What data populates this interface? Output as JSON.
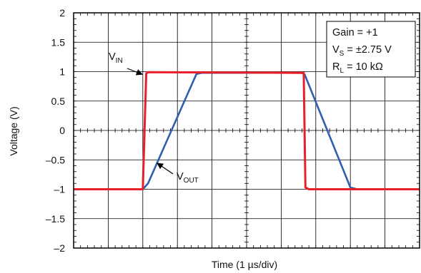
{
  "chart_data": {
    "type": "line",
    "title": "",
    "xlabel": "Time (1 µs/div)",
    "ylabel": "Voltage (V)",
    "xlim": [
      0,
      10
    ],
    "ylim": [
      -2,
      2
    ],
    "x_divisions": 10,
    "y_ticks": [
      2,
      1.5,
      1,
      0.5,
      0,
      -0.5,
      -1,
      -1.5,
      -2
    ],
    "y_tick_labels": [
      "2",
      "1.5",
      "1",
      "0.5",
      "0",
      "–0.5",
      "–1",
      "–1.5",
      "–2"
    ],
    "grid": true,
    "minor_ticks_per_div": 5,
    "legend": {
      "placement": "top-right",
      "lines": [
        {
          "main": "Gain = +1",
          "sub": "",
          "rest": ""
        },
        {
          "main": "V",
          "sub": "S",
          "rest": " = ±2.75 V"
        },
        {
          "main": "R",
          "sub": "L",
          "rest": " = 10 kΩ"
        }
      ]
    },
    "annotations": [
      {
        "id": "vin",
        "main": "V",
        "sub": "IN",
        "points_to": [
          2.0,
          0.95
        ]
      },
      {
        "id": "vout",
        "main": "V",
        "sub": "OUT",
        "points_to": [
          2.4,
          -0.55
        ]
      }
    ],
    "series": [
      {
        "id": "vin",
        "color": "#e8202a",
        "x": [
          0,
          2.0,
          2.1,
          2.15,
          6.6,
          6.65,
          6.7,
          6.8,
          10
        ],
        "y": [
          -1.0,
          -1.0,
          0.97,
          0.99,
          0.98,
          0.98,
          -0.97,
          -1.0,
          -1.0
        ]
      },
      {
        "id": "vout",
        "color": "#2f5fb0",
        "x": [
          0,
          2.0,
          2.15,
          3.55,
          3.7,
          6.6,
          6.68,
          8.0,
          8.2,
          10
        ],
        "y": [
          -1.0,
          -1.0,
          -0.9,
          0.96,
          0.98,
          0.98,
          0.95,
          -0.97,
          -1.0,
          -1.0
        ]
      }
    ]
  }
}
